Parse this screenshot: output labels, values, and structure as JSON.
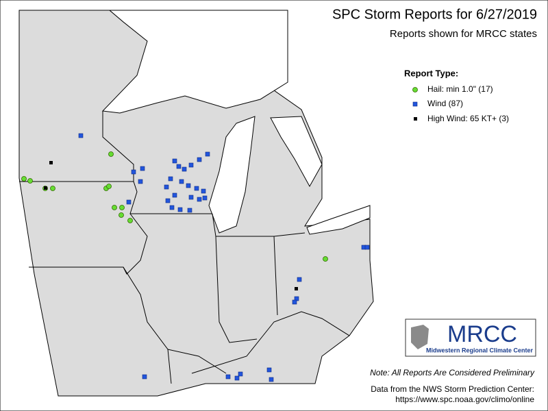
{
  "header": {
    "title": "SPC Storm Reports for 6/27/2019",
    "subtitle": "Reports shown for MRCC states"
  },
  "legend": {
    "title": "Report Type:",
    "items": [
      {
        "label": "Hail: min 1.0\" (17)"
      },
      {
        "label": "Wind (87)"
      },
      {
        "label": "High Wind: 65 KT+ (3)"
      }
    ]
  },
  "logo": {
    "name": "MRCC",
    "full_name": "Midwestern Regional Climate Center"
  },
  "footer": {
    "note": "Note: All Reports Are Considered Preliminary",
    "source": "Data from the NWS Storm Prediction Center:",
    "url": "https://www.spc.noaa.gov/climo/online"
  }
}
